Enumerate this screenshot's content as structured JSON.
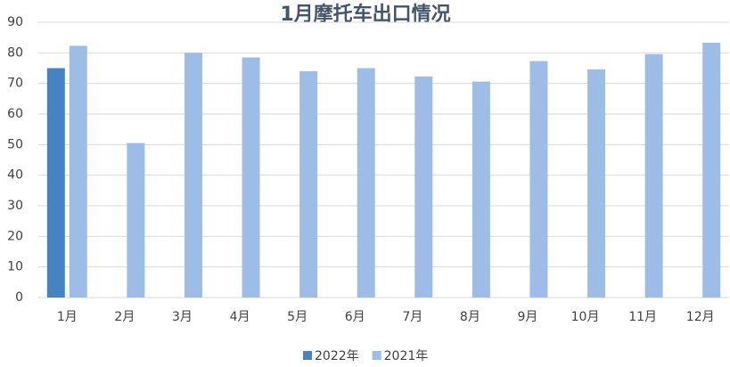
{
  "chart_data": {
    "type": "bar",
    "title": "1月摩托车出口情况",
    "categories": [
      "1月",
      "2月",
      "3月",
      "4月",
      "5月",
      "6月",
      "7月",
      "8月",
      "9月",
      "10月",
      "11月",
      "12月"
    ],
    "series": [
      {
        "name": "2022年",
        "color": "#4683c2",
        "values": [
          75,
          null,
          null,
          null,
          null,
          null,
          null,
          null,
          null,
          null,
          null,
          null
        ]
      },
      {
        "name": "2021年",
        "color": "#9dbde6",
        "values": [
          82.3,
          50.5,
          80,
          78.5,
          74,
          75,
          72.3,
          70.6,
          77.3,
          74.6,
          79.6,
          83.3
        ]
      }
    ],
    "ylim": [
      0,
      90
    ],
    "yticks": [
      0,
      10,
      20,
      30,
      40,
      50,
      60,
      70,
      80,
      90
    ],
    "grid": true,
    "legend": "bottom"
  }
}
